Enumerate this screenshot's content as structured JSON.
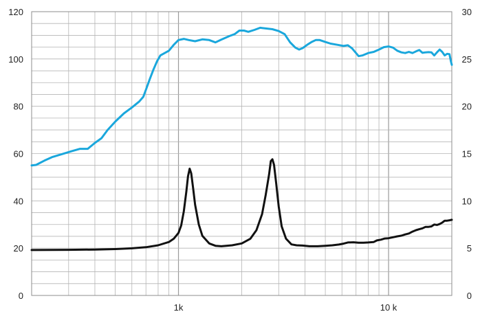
{
  "chart_data": {
    "type": "line",
    "title": "",
    "xlabel": "",
    "ylabel": "",
    "y2label": "",
    "x_scale": "log",
    "xlim": [
      200,
      20000
    ],
    "ylim": [
      0,
      120
    ],
    "y2lim": [
      0,
      30
    ],
    "grid": true,
    "x_tick_labels": [
      {
        "value": 1000,
        "label": "1k"
      },
      {
        "value": 10000,
        "label": "10 k"
      }
    ],
    "y_tick_labels": [
      "0",
      "20",
      "40",
      "60",
      "80",
      "100",
      "120"
    ],
    "y2_tick_labels": [
      "0",
      "5",
      "10",
      "15",
      "20",
      "25",
      "30"
    ],
    "series": [
      {
        "axis": "left",
        "color": "#1aa7dc",
        "points": [
          [
            200,
            55.0
          ],
          [
            210,
            55.2
          ],
          [
            230,
            57.0
          ],
          [
            250,
            58.5
          ],
          [
            280,
            59.8
          ],
          [
            310,
            61.0
          ],
          [
            340,
            62.0
          ],
          [
            370,
            62.0
          ],
          [
            400,
            64.5
          ],
          [
            430,
            66.5
          ],
          [
            460,
            70.0
          ],
          [
            500,
            73.5
          ],
          [
            550,
            77.0
          ],
          [
            600,
            79.5
          ],
          [
            650,
            82.0
          ],
          [
            680,
            84.0
          ],
          [
            700,
            87.0
          ],
          [
            730,
            91.5
          ],
          [
            760,
            95.5
          ],
          [
            790,
            99.0
          ],
          [
            820,
            101.5
          ],
          [
            860,
            102.5
          ],
          [
            900,
            103.5
          ],
          [
            950,
            106.0
          ],
          [
            1000,
            108.0
          ],
          [
            1060,
            108.5
          ],
          [
            1120,
            108.0
          ],
          [
            1200,
            107.5
          ],
          [
            1300,
            108.3
          ],
          [
            1400,
            108.0
          ],
          [
            1500,
            107.0
          ],
          [
            1600,
            108.2
          ],
          [
            1750,
            109.7
          ],
          [
            1850,
            110.5
          ],
          [
            1950,
            112.0
          ],
          [
            2050,
            112.0
          ],
          [
            2150,
            111.5
          ],
          [
            2300,
            112.3
          ],
          [
            2450,
            113.2
          ],
          [
            2600,
            112.9
          ],
          [
            2800,
            112.6
          ],
          [
            3000,
            111.8
          ],
          [
            3200,
            110.5
          ],
          [
            3400,
            107.0
          ],
          [
            3600,
            104.8
          ],
          [
            3750,
            104.0
          ],
          [
            3900,
            104.6
          ],
          [
            4100,
            106.0
          ],
          [
            4300,
            107.2
          ],
          [
            4500,
            108.0
          ],
          [
            4700,
            108.0
          ],
          [
            5000,
            107.2
          ],
          [
            5300,
            106.5
          ],
          [
            5700,
            106.0
          ],
          [
            6100,
            105.5
          ],
          [
            6400,
            105.8
          ],
          [
            6700,
            104.5
          ],
          [
            7000,
            102.5
          ],
          [
            7200,
            101.2
          ],
          [
            7500,
            101.5
          ],
          [
            8000,
            102.5
          ],
          [
            8500,
            103.0
          ],
          [
            9000,
            104.0
          ],
          [
            9500,
            105.0
          ],
          [
            10000,
            105.3
          ],
          [
            10500,
            104.8
          ],
          [
            11000,
            103.5
          ],
          [
            11500,
            102.8
          ],
          [
            12000,
            102.5
          ],
          [
            12500,
            103.0
          ],
          [
            13000,
            102.5
          ],
          [
            13500,
            103.2
          ],
          [
            14000,
            103.8
          ],
          [
            14500,
            102.6
          ],
          [
            15000,
            102.8
          ],
          [
            15500,
            102.9
          ],
          [
            16000,
            102.8
          ],
          [
            16500,
            101.5
          ],
          [
            17000,
            102.8
          ],
          [
            17500,
            104.0
          ],
          [
            18000,
            103.0
          ],
          [
            18500,
            101.5
          ],
          [
            19000,
            102.2
          ],
          [
            19500,
            102.0
          ],
          [
            19800,
            99.0
          ],
          [
            20000,
            97.5
          ]
        ]
      },
      {
        "axis": "right",
        "color": "#111111",
        "points": [
          [
            200,
            4.8
          ],
          [
            300,
            4.82
          ],
          [
            400,
            4.85
          ],
          [
            500,
            4.9
          ],
          [
            600,
            4.98
          ],
          [
            700,
            5.1
          ],
          [
            800,
            5.3
          ],
          [
            900,
            5.65
          ],
          [
            950,
            6.0
          ],
          [
            1000,
            6.6
          ],
          [
            1030,
            7.4
          ],
          [
            1060,
            8.9
          ],
          [
            1090,
            11.0
          ],
          [
            1110,
            12.6
          ],
          [
            1130,
            13.4
          ],
          [
            1150,
            12.9
          ],
          [
            1175,
            11.3
          ],
          [
            1200,
            9.6
          ],
          [
            1250,
            7.5
          ],
          [
            1300,
            6.3
          ],
          [
            1400,
            5.5
          ],
          [
            1500,
            5.25
          ],
          [
            1600,
            5.2
          ],
          [
            1800,
            5.3
          ],
          [
            2000,
            5.5
          ],
          [
            2200,
            6.0
          ],
          [
            2350,
            6.9
          ],
          [
            2500,
            8.6
          ],
          [
            2600,
            10.6
          ],
          [
            2700,
            12.8
          ],
          [
            2750,
            14.2
          ],
          [
            2800,
            14.4
          ],
          [
            2850,
            13.8
          ],
          [
            2920,
            11.8
          ],
          [
            3000,
            9.4
          ],
          [
            3100,
            7.3
          ],
          [
            3250,
            6.0
          ],
          [
            3450,
            5.4
          ],
          [
            3650,
            5.3
          ],
          [
            3900,
            5.27
          ],
          [
            4200,
            5.2
          ],
          [
            4600,
            5.2
          ],
          [
            5000,
            5.25
          ],
          [
            5400,
            5.3
          ],
          [
            5800,
            5.38
          ],
          [
            6100,
            5.48
          ],
          [
            6400,
            5.6
          ],
          [
            6800,
            5.62
          ],
          [
            7200,
            5.58
          ],
          [
            7600,
            5.58
          ],
          [
            8000,
            5.6
          ],
          [
            8500,
            5.65
          ],
          [
            8800,
            5.82
          ],
          [
            9200,
            5.9
          ],
          [
            9600,
            6.02
          ],
          [
            10000,
            6.05
          ],
          [
            10500,
            6.15
          ],
          [
            11000,
            6.25
          ],
          [
            11500,
            6.32
          ],
          [
            12000,
            6.45
          ],
          [
            12500,
            6.55
          ],
          [
            13000,
            6.75
          ],
          [
            13500,
            6.9
          ],
          [
            14000,
            7.0
          ],
          [
            14500,
            7.1
          ],
          [
            15000,
            7.25
          ],
          [
            15500,
            7.25
          ],
          [
            16000,
            7.3
          ],
          [
            16500,
            7.5
          ],
          [
            17000,
            7.45
          ],
          [
            17500,
            7.55
          ],
          [
            18000,
            7.7
          ],
          [
            18500,
            7.9
          ],
          [
            19000,
            7.9
          ],
          [
            19500,
            7.95
          ],
          [
            20000,
            8.0
          ]
        ]
      }
    ]
  }
}
